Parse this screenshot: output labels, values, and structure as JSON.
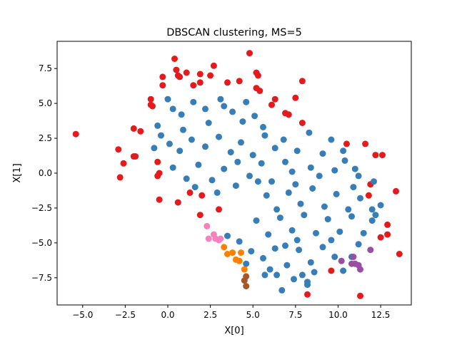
{
  "chart_data": {
    "type": "scatter",
    "title": "DBSCAN clustering, MS=5",
    "xlabel": "X[0]",
    "ylabel": "X[1]",
    "xlim": [
      -6.5,
      14.3
    ],
    "ylim": [
      -9.45,
      9.45
    ],
    "xticks": [
      -5.0,
      -2.5,
      0.0,
      2.5,
      5.0,
      7.5,
      10.0,
      12.5
    ],
    "xtick_labels": [
      "−5.0",
      "−2.5",
      "0.0",
      "2.5",
      "5.0",
      "7.5",
      "10.0",
      "12.5"
    ],
    "yticks": [
      -7.5,
      -5.0,
      -2.5,
      0.0,
      2.5,
      5.0,
      7.5
    ],
    "ytick_labels": [
      "−7.5",
      "−5.0",
      "−2.5",
      "0.0",
      "2.5",
      "5.0",
      "7.5"
    ],
    "grid": false,
    "series": [
      {
        "color": "#e41a1c",
        "points": [
          [
            -5.4,
            2.8
          ],
          [
            -2.9,
            1.7
          ],
          [
            -2.8,
            -0.3
          ],
          [
            -2.6,
            0.7
          ],
          [
            -2.0,
            3.2
          ],
          [
            -2.0,
            1.2
          ],
          [
            -1.9,
            1.2
          ],
          [
            -1.6,
            3.0
          ],
          [
            -1.0,
            4.9
          ],
          [
            -1.0,
            5.3
          ],
          [
            -0.9,
            4.8
          ],
          [
            -0.6,
            0.8
          ],
          [
            -0.6,
            -0.2
          ],
          [
            -0.5,
            0.0
          ],
          [
            -0.5,
            -1.9
          ],
          [
            -0.3,
            6.3
          ],
          [
            -0.3,
            6.9
          ],
          [
            0.4,
            8.2
          ],
          [
            0.5,
            7.4
          ],
          [
            0.6,
            7.0
          ],
          [
            0.7,
            6.9
          ],
          [
            0.6,
            -2.1
          ],
          [
            1.1,
            7.2
          ],
          [
            1.3,
            -1.4
          ],
          [
            1.5,
            6.3
          ],
          [
            1.9,
            7.1
          ],
          [
            1.9,
            6.5
          ],
          [
            1.9,
            -3.0
          ],
          [
            2.0,
            -1.6
          ],
          [
            2.5,
            7.0
          ],
          [
            2.7,
            7.7
          ],
          [
            3.0,
            -2.6
          ],
          [
            3.5,
            6.5
          ],
          [
            4.2,
            6.6
          ],
          [
            4.8,
            8.6
          ],
          [
            5.2,
            7.2
          ],
          [
            5.3,
            7.0
          ],
          [
            5.2,
            6.1
          ],
          [
            5.4,
            5.9
          ],
          [
            6.1,
            4.9
          ],
          [
            6.3,
            5.3
          ],
          [
            6.9,
            4.3
          ],
          [
            7.1,
            4.2
          ],
          [
            7.5,
            5.4
          ],
          [
            7.9,
            3.6
          ],
          [
            7.9,
            6.6
          ],
          [
            8.2,
            -8.7
          ],
          [
            9.6,
            -7.0
          ],
          [
            10.5,
            2.1
          ],
          [
            11.3,
            -8.8
          ],
          [
            11.6,
            2.1
          ],
          [
            12.2,
            1.3
          ],
          [
            12.6,
            1.3
          ],
          [
            12.5,
            -4.6
          ],
          [
            12.9,
            -3.7
          ],
          [
            12.9,
            -4.4
          ],
          [
            13.4,
            -1.3
          ],
          [
            13.6,
            -5.8
          ],
          [
            11.9,
            -0.8
          ],
          [
            11.8,
            -1.6
          ]
        ]
      },
      {
        "color": "#377eb8",
        "points": [
          [
            0,
            5.3
          ],
          [
            0.3,
            4.6
          ],
          [
            0.8,
            4.2
          ],
          [
            1.5,
            5.1
          ],
          [
            2.2,
            4.6
          ],
          [
            3.1,
            5.3
          ],
          [
            3.8,
            4.4
          ],
          [
            4.6,
            5.1
          ],
          [
            5.1,
            4.1
          ],
          [
            5.6,
            3.3
          ],
          [
            0.1,
            2.1
          ],
          [
            0.7,
            1.6
          ],
          [
            1.4,
            2.4
          ],
          [
            2.2,
            1.9
          ],
          [
            3.0,
            2.6
          ],
          [
            3.7,
            1.5
          ],
          [
            4.3,
            2.2
          ],
          [
            5.0,
            1.3
          ],
          [
            5.7,
            2.7
          ],
          [
            0.3,
            0.4
          ],
          [
            1.1,
            -0.4
          ],
          [
            1.8,
            0.6
          ],
          [
            2.6,
            -0.5
          ],
          [
            3.3,
            0.3
          ],
          [
            4.0,
            -0.9
          ],
          [
            4.8,
            -0.2
          ],
          [
            5.5,
            0.7
          ],
          [
            -0.6,
            3.4
          ],
          [
            -0.8,
            1.8
          ],
          [
            -0.4,
            2.7
          ],
          [
            6.3,
            1.8
          ],
          [
            6.9,
            0.8
          ],
          [
            7.6,
            1.6
          ],
          [
            8.4,
            0.4
          ],
          [
            9.1,
            1.4
          ],
          [
            9.8,
            0.2
          ],
          [
            10.4,
            0.9
          ],
          [
            11.2,
            -0.2
          ],
          [
            12.1,
            -0.6
          ],
          [
            5.8,
            -1.6
          ],
          [
            6.4,
            -2.6
          ],
          [
            7.1,
            -1.4
          ],
          [
            7.8,
            -2.2
          ],
          [
            8.5,
            -1.1
          ],
          [
            9.2,
            -2.4
          ],
          [
            9.9,
            -1.5
          ],
          [
            10.6,
            -2.6
          ],
          [
            11.3,
            -1.8
          ],
          [
            12.0,
            -2.6
          ],
          [
            5.2,
            -3.4
          ],
          [
            5.9,
            -4.4
          ],
          [
            6.6,
            -3.2
          ],
          [
            7.3,
            -4.1
          ],
          [
            8.0,
            -3.0
          ],
          [
            8.7,
            -4.3
          ],
          [
            9.4,
            -3.3
          ],
          [
            10.1,
            -4.2
          ],
          [
            10.8,
            -3.1
          ],
          [
            11.5,
            -4.3
          ],
          [
            12.0,
            -3.4
          ],
          [
            3.5,
            -4.5
          ],
          [
            4.2,
            -4.9
          ],
          [
            4.9,
            -5.6
          ],
          [
            5.6,
            -6.1
          ],
          [
            6.3,
            -5.4
          ],
          [
            7.0,
            -6.6
          ],
          [
            7.7,
            -5.5
          ],
          [
            8.4,
            -6.4
          ],
          [
            9.1,
            -5.3
          ],
          [
            9.8,
            -6.0
          ],
          [
            6.7,
            -8.4
          ],
          [
            7.4,
            -7.6
          ],
          [
            8.2,
            -7.8
          ],
          [
            8.6,
            -7.1
          ],
          [
            6.0,
            -6.9
          ],
          [
            5.7,
            -7.3
          ],
          [
            6.4,
            -7.3
          ],
          [
            7.9,
            -7.3
          ],
          [
            8.2,
            -8.0
          ],
          [
            10.3,
            -7.0
          ],
          [
            10.8,
            -6.0
          ],
          [
            11.2,
            -5.1
          ],
          [
            4.6,
            -6.5
          ],
          [
            8.3,
            2.9
          ],
          [
            9.6,
            2.4
          ],
          [
            10.3,
            1.6
          ],
          [
            11.0,
            0.3
          ],
          [
            12.5,
            -2.3
          ],
          [
            12.2,
            -3.0
          ],
          [
            3.3,
            4.8
          ],
          [
            4.4,
            3.7
          ],
          [
            6.8,
            2.4
          ],
          [
            7.3,
            0.1
          ],
          [
            6.1,
            -0.6
          ],
          [
            2.9,
            -1.4
          ],
          [
            1.6,
            -1.0
          ],
          [
            0.9,
            3.1
          ],
          [
            2.4,
            3.6
          ],
          [
            4.1,
            0.8
          ],
          [
            5.3,
            -0.6
          ],
          [
            7.5,
            -0.8
          ],
          [
            8.9,
            -0.2
          ],
          [
            10.9,
            -1.0
          ],
          [
            9.6,
            -4.8
          ],
          [
            7.6,
            -4.8
          ],
          [
            6.9,
            -5.2
          ]
        ]
      },
      {
        "color": "#ff7f00",
        "points": [
          [
            3.3,
            -5.3
          ],
          [
            3.5,
            -5.8
          ],
          [
            3.8,
            -5.7
          ],
          [
            4.0,
            -6.2
          ],
          [
            4.2,
            -6.3
          ],
          [
            4.3,
            -5.7
          ],
          [
            4.5,
            -6.9
          ]
        ]
      },
      {
        "color": "#f781bf",
        "points": [
          [
            2.3,
            -3.8
          ],
          [
            2.4,
            -4.7
          ],
          [
            2.7,
            -4.4
          ],
          [
            2.8,
            -4.7
          ],
          [
            3.0,
            -4.8
          ],
          [
            3.1,
            -4.7
          ]
        ]
      },
      {
        "color": "#984ea3",
        "points": [
          [
            10.2,
            -6.3
          ],
          [
            10.8,
            -6.5
          ],
          [
            10.9,
            -6.0
          ],
          [
            11.0,
            -6.5
          ],
          [
            11.2,
            -6.6
          ],
          [
            11.3,
            -6.9
          ],
          [
            11.9,
            -5.5
          ]
        ]
      },
      {
        "color": "#a65628",
        "points": [
          [
            4.5,
            -7.7
          ],
          [
            4.6,
            -7.4
          ],
          [
            4.6,
            -8.1
          ]
        ]
      }
    ]
  }
}
